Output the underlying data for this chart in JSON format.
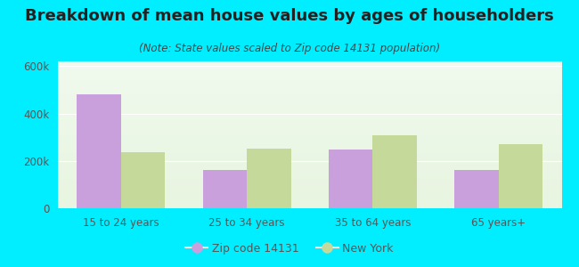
{
  "title": "Breakdown of mean house values by ages of householders",
  "subtitle": "(Note: State values scaled to Zip code 14131 population)",
  "categories": [
    "15 to 24 years",
    "25 to 34 years",
    "35 to 64 years",
    "65 years+"
  ],
  "zip_values": [
    480000,
    160000,
    247000,
    163000
  ],
  "ny_values": [
    237000,
    250000,
    307000,
    272000
  ],
  "zip_color": "#c9a0dc",
  "ny_color": "#c5d99a",
  "background_outer": "#00eeff",
  "background_inner_top": "#f0faee",
  "background_inner_bottom": "#e8f5e0",
  "ylim": [
    0,
    620000
  ],
  "yticks": [
    0,
    200000,
    400000,
    600000
  ],
  "ytick_labels": [
    "0",
    "200k",
    "400k",
    "600k"
  ],
  "legend_zip_label": "Zip code 14131",
  "legend_ny_label": "New York",
  "bar_width": 0.35,
  "title_fontsize": 13,
  "subtitle_fontsize": 8.5,
  "tick_fontsize": 8.5,
  "legend_fontsize": 9,
  "title_color": "#222222",
  "subtitle_color": "#444444",
  "tick_color": "#555555",
  "grid_color": "#ffffff"
}
